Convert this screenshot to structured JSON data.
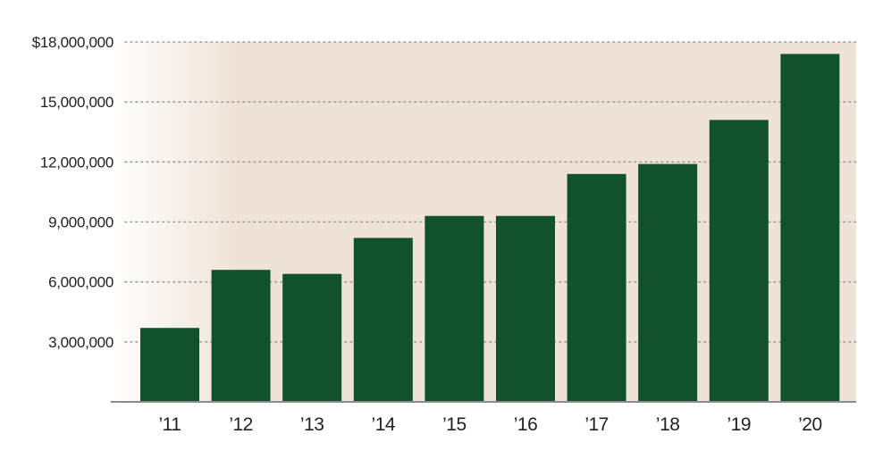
{
  "colors": {
    "bar": "#11522c",
    "plot_background": "#efe3d7",
    "fade_start": "#ffffff",
    "axis_line": "#8c8c8c",
    "gridline": "#9c9c9c"
  },
  "chart_data": {
    "type": "bar",
    "title": "",
    "xlabel": "",
    "ylabel": "",
    "categories": [
      "’11",
      "’12",
      "’13",
      "’14",
      "’15",
      "’16",
      "’17",
      "’18",
      "’19",
      "’20"
    ],
    "values": [
      3700000,
      6600000,
      6400000,
      8200000,
      9300000,
      9300000,
      11400000,
      11900000,
      14100000,
      17400000
    ],
    "ylim": [
      0,
      18000000
    ],
    "yticks": [
      3000000,
      6000000,
      9000000,
      12000000,
      15000000,
      18000000
    ],
    "ytick_labels": [
      "3,000,000",
      "6,000,000",
      "9,000,000",
      "12,000,000",
      "15,000,000",
      "$18,000,000"
    ],
    "grid": true,
    "legend": "none"
  }
}
